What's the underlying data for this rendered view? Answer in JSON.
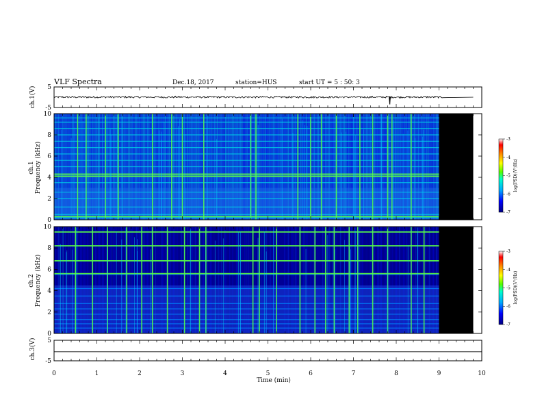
{
  "header": {
    "title": "VLF Spectra",
    "date": "Dec.18, 2017",
    "station": "station=HUS",
    "start": "start  UT =   5 : 50: 3"
  },
  "colors": {
    "background": "#ffffff",
    "axes": "#000000",
    "no_data": "#000000",
    "colormap": [
      "#000080",
      "#0000ff",
      "#00aaff",
      "#00ffcc",
      "#55ff00",
      "#ffff00",
      "#ff8800",
      "#ff0000",
      "#ffffff"
    ]
  },
  "chart_data": [
    {
      "type": "line",
      "panel": "ch1-waveform",
      "ylabel": "ch.1(V)",
      "yticks": [
        "5",
        "-5"
      ],
      "ylim": [
        -5,
        5
      ],
      "xlim": [
        0,
        10
      ],
      "series": [
        {
          "x": [
            0,
            1,
            2,
            3,
            4,
            5,
            6,
            7,
            7.85,
            8,
            9,
            9.1,
            9.8
          ],
          "y": [
            0.1,
            0.1,
            0.0,
            0.1,
            0.0,
            0.1,
            0.0,
            0.1,
            -3.5,
            0.1,
            0.0,
            0.0,
            0.0
          ]
        }
      ]
    },
    {
      "type": "heatmap",
      "panel": "ch1-spectrogram",
      "ylabel": "ch.1",
      "ylabel2": "Frequency (kHz)",
      "yticks": [
        "0",
        "2",
        "4",
        "6",
        "8",
        "10"
      ],
      "ylim": [
        0,
        10
      ],
      "xlim": [
        0,
        10
      ],
      "data_end_min": 9.0,
      "plot_end_min": 9.8,
      "colorbar": {
        "label": "log(PSD)(V²/Hz)",
        "ticks": [
          "-3",
          "-4",
          "-5",
          "-6",
          "-7"
        ],
        "range": [
          -7,
          -3
        ]
      },
      "band_lines_khz": [
        0.2,
        0.5,
        1.2,
        2.0,
        2.6,
        3.5,
        4.1,
        4.3,
        5.0,
        5.6,
        6.2,
        6.8,
        7.4,
        8.0,
        8.6,
        9.2,
        9.6
      ],
      "strong_lines_khz": [
        0.3,
        4.1,
        4.3
      ],
      "spike_times_min": [
        0.55,
        0.75,
        1.2,
        1.5,
        2.3,
        2.75,
        3.0,
        3.5,
        4.6,
        4.72,
        5.7,
        6.0,
        6.25,
        6.6,
        7.15,
        7.45,
        7.8,
        7.9,
        8.35
      ]
    },
    {
      "type": "heatmap",
      "panel": "ch2-spectrogram",
      "ylabel": "ch.2",
      "ylabel2": "Frequency (kHz)",
      "yticks": [
        "0",
        "2",
        "4",
        "6",
        "8",
        "10"
      ],
      "ylim": [
        0,
        10
      ],
      "xlim": [
        0,
        10
      ],
      "data_end_min": 9.0,
      "plot_end_min": 9.8,
      "colorbar": {
        "label": "log(PSD)(V²/Hz)",
        "ticks": [
          "-3",
          "-4",
          "-5",
          "-6",
          "-7"
        ],
        "range": [
          -7,
          -3
        ]
      },
      "band_lines_khz": [
        0.5,
        0.9,
        1.3,
        1.8,
        2.3,
        2.8,
        3.5,
        4.2,
        5.5,
        6.8,
        8.2,
        9.5
      ],
      "strong_lines_khz": [
        5.6,
        6.8,
        8.2,
        9.5
      ],
      "spike_times_min": [
        0.5,
        0.9,
        1.25,
        1.7,
        2.05,
        2.3,
        2.65,
        3.05,
        3.4,
        3.55,
        4.65,
        4.8,
        5.2,
        5.75,
        6.1,
        6.35,
        6.55,
        6.9,
        7.1,
        7.45,
        7.8,
        8.35,
        8.65
      ]
    },
    {
      "type": "line",
      "panel": "ch3-waveform",
      "ylabel": "ch.3(V)",
      "yticks": [
        "5",
        "-5"
      ],
      "ylim": [
        -5,
        5
      ],
      "xlim": [
        0,
        10
      ],
      "series": [
        {
          "x": [
            0,
            10
          ],
          "y": [
            -0.6,
            -0.6
          ]
        }
      ]
    }
  ],
  "xaxis": {
    "label": "Time  (min)",
    "ticks": [
      "0",
      "1",
      "2",
      "3",
      "4",
      "5",
      "6",
      "7",
      "8",
      "9",
      "10"
    ]
  }
}
